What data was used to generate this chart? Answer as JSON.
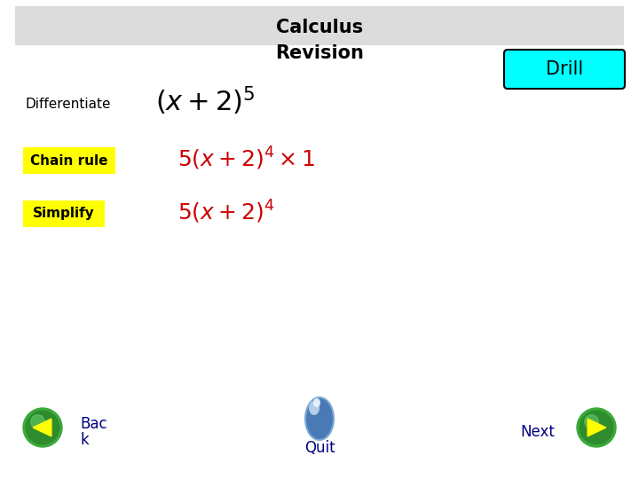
{
  "title_line1": "Calculus",
  "title_line2": "Revision",
  "title_bg_color": "#dcdcdc",
  "title_fontsize": 15,
  "bg_color": "#ffffff",
  "differentiate_label": "Differentiate",
  "drill_label": "Drill",
  "drill_bg": "#00ffff",
  "drill_text_color": "#000000",
  "chain_rule_label": "Chain rule",
  "simplify_label": "Simplify",
  "yellow_bg": "#ffff00",
  "red_color": "#cc0000",
  "black_color": "#000000",
  "navy_color": "#000080",
  "back_label_1": "Bac",
  "back_label_2": "k",
  "quit_label": "Quit",
  "next_label": "Next",
  "green_btn_color": "#2e8b2e",
  "yellow_arrow": "#ffff00",
  "label_fontsize": 11,
  "expr_fontsize": 18,
  "btn_fontsize": 12
}
